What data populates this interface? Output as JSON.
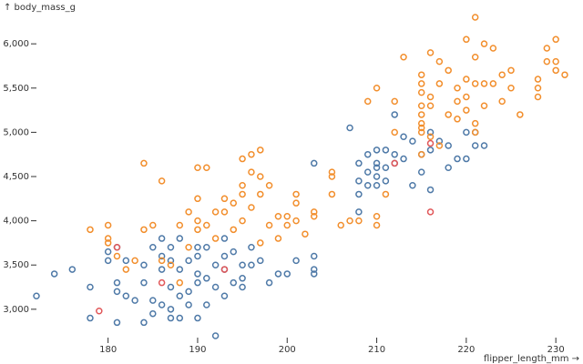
{
  "chart_data": {
    "type": "scatter",
    "x_label": "flipper_length_mm →",
    "y_label": "↑ body_mass_g",
    "xlim": [
      172,
      231
    ],
    "ylim": [
      2700,
      6300
    ],
    "xticks": [
      180,
      190,
      200,
      210,
      220,
      230
    ],
    "yticks": [
      {
        "value": 3000,
        "label": "3,000"
      },
      {
        "value": 3500,
        "label": "3,500"
      },
      {
        "value": 4000,
        "label": "4,000"
      },
      {
        "value": 4500,
        "label": "4,500"
      },
      {
        "value": 5000,
        "label": "5,000"
      },
      {
        "value": 5500,
        "label": "5,500"
      },
      {
        "value": 6000,
        "label": "6,000"
      }
    ],
    "series": [
      {
        "color": "#4e79a7",
        "x": [
          172,
          174,
          176,
          178,
          178,
          180,
          180,
          181,
          181,
          181,
          181,
          182,
          182,
          183,
          184,
          184,
          184,
          185,
          185,
          185,
          186,
          186,
          186,
          186,
          187,
          187,
          187,
          187,
          187,
          188,
          188,
          188,
          188,
          189,
          189,
          189,
          190,
          190,
          190,
          190,
          190,
          191,
          191,
          191,
          192,
          192,
          192,
          193,
          193,
          193,
          193,
          194,
          194,
          195,
          195,
          195,
          196,
          196,
          197,
          198,
          199,
          200,
          201,
          203,
          203,
          203,
          203,
          207,
          208,
          208,
          208,
          208,
          209,
          209,
          209,
          210,
          210,
          210,
          210,
          210,
          211,
          211,
          211,
          212,
          212,
          212,
          213,
          213,
          214,
          214,
          215,
          215,
          216,
          216,
          217,
          218,
          218,
          219,
          220,
          220,
          221,
          221,
          222,
          216
        ],
        "values": [
          3150,
          3400,
          3450,
          3250,
          2900,
          3550,
          3650,
          3700,
          3300,
          3200,
          2850,
          3150,
          3550,
          3100,
          3500,
          2850,
          3300,
          3700,
          3100,
          2950,
          3800,
          3600,
          3450,
          3050,
          3700,
          3550,
          3250,
          3000,
          2900,
          3800,
          3450,
          3150,
          2900,
          3550,
          3200,
          3050,
          3700,
          3600,
          3400,
          3300,
          2900,
          3700,
          3350,
          3050,
          3500,
          3250,
          2700,
          3800,
          3600,
          3450,
          3150,
          3650,
          3300,
          3500,
          3350,
          3250,
          3700,
          3500,
          3550,
          3300,
          3400,
          3400,
          3550,
          3450,
          3600,
          3400,
          4650,
          5050,
          4650,
          4450,
          4300,
          4100,
          4750,
          4550,
          4400,
          4800,
          4650,
          4600,
          4500,
          4400,
          4800,
          4600,
          4450,
          5200,
          4750,
          4650,
          4950,
          4700,
          4400,
          4900,
          4750,
          4550,
          4800,
          4350,
          4900,
          4850,
          4600,
          4700,
          5000,
          4700,
          5000,
          4850,
          4850,
          5000
        ]
      },
      {
        "color": "#f28e2c",
        "x": [
          178,
          180,
          180,
          180,
          181,
          182,
          183,
          184,
          184,
          185,
          186,
          186,
          187,
          188,
          188,
          189,
          189,
          190,
          190,
          190,
          190,
          191,
          191,
          192,
          192,
          193,
          193,
          194,
          194,
          195,
          195,
          195,
          195,
          196,
          196,
          196,
          197,
          197,
          197,
          197,
          198,
          198,
          199,
          199,
          200,
          200,
          201,
          201,
          201,
          202,
          203,
          203,
          205,
          205,
          206,
          207,
          208,
          205,
          210,
          209,
          212,
          213,
          215,
          215,
          215,
          215,
          215,
          215,
          215,
          216,
          216,
          216,
          217,
          217,
          218,
          218,
          219,
          219,
          220,
          220,
          220,
          220,
          221,
          221,
          222,
          222,
          222,
          223,
          223,
          224,
          224,
          225,
          225,
          226,
          228,
          228,
          229,
          229,
          230,
          230,
          230,
          231,
          221,
          216,
          217,
          215,
          211,
          210,
          210,
          219,
          215,
          221,
          221,
          228,
          212
        ],
        "values": [
          3900,
          3950,
          3800,
          3750,
          3600,
          3450,
          3550,
          4650,
          3900,
          3950,
          4450,
          3550,
          3500,
          3950,
          3300,
          4100,
          3700,
          4250,
          4600,
          3900,
          4000,
          4600,
          3950,
          4100,
          3800,
          4250,
          4100,
          4200,
          3900,
          4700,
          4400,
          4300,
          4000,
          4750,
          4550,
          4150,
          4800,
          4500,
          4300,
          3750,
          4400,
          3950,
          4050,
          3800,
          4050,
          3950,
          4000,
          4300,
          4200,
          3850,
          4100,
          4050,
          4500,
          4300,
          3950,
          4000,
          4000,
          4550,
          5500,
          5350,
          5350,
          5850,
          5650,
          5550,
          5450,
          5300,
          5200,
          5100,
          5000,
          5400,
          5300,
          5900,
          5800,
          5550,
          5700,
          5200,
          5350,
          5500,
          6050,
          5600,
          5400,
          5250,
          5550,
          5850,
          5300,
          5550,
          6000,
          5950,
          5550,
          5650,
          5350,
          5700,
          5500,
          5200,
          5600,
          5400,
          5800,
          5950,
          5800,
          6050,
          5700,
          5650,
          6300,
          4950,
          4850,
          4750,
          4300,
          4050,
          3950,
          5150,
          5050,
          5100,
          5000,
          5500,
          5000
        ]
      },
      {
        "color": "#e15759",
        "x": [
          181,
          179,
          186,
          193,
          212,
          216,
          216
        ],
        "values": [
          3700,
          2980,
          3300,
          3450,
          4650,
          4875,
          4100
        ]
      }
    ]
  }
}
